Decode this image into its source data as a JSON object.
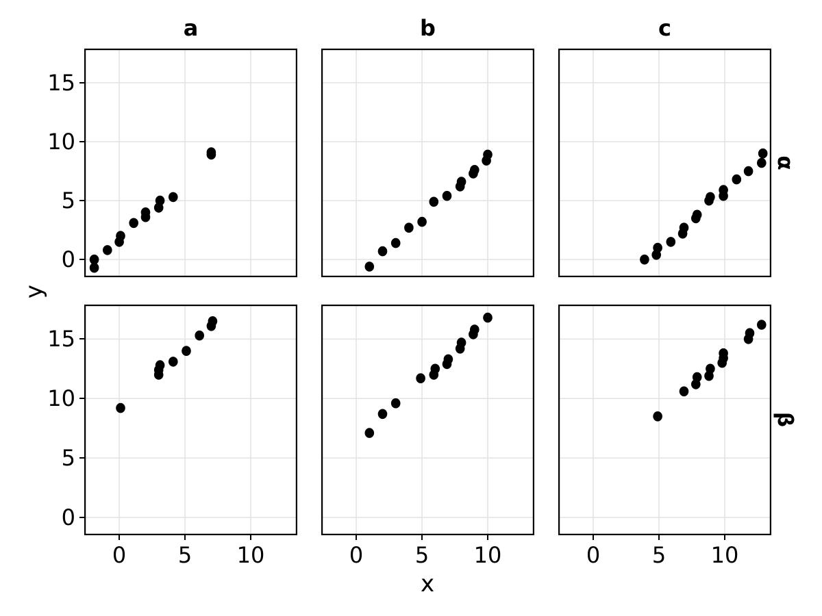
{
  "chart_data": {
    "type": "scatter",
    "facet_layout": "grid",
    "col_facets": [
      "a",
      "b",
      "c"
    ],
    "row_facets": [
      "α",
      "β"
    ],
    "xlabel": "x",
    "ylabel": "y",
    "x_ticks": [
      0,
      5,
      10
    ],
    "y_ticks": [
      0,
      5,
      10,
      15
    ],
    "xlim": [
      -2.66,
      13.54
    ],
    "ylim": [
      -1.5,
      17.9
    ],
    "grid": "major-only",
    "legend": "none",
    "point_color": "#000000",
    "grid_color": "#e2e2e2",
    "border_color": "#000000",
    "background_color": "#ffffff",
    "panels": [
      {
        "row": "α",
        "col": "a",
        "points": [
          [
            -1.9,
            0.0
          ],
          [
            -1.9,
            -0.7
          ],
          [
            -0.9,
            0.8
          ],
          [
            0.0,
            1.5
          ],
          [
            0.1,
            2.0
          ],
          [
            1.1,
            3.1
          ],
          [
            2.0,
            3.6
          ],
          [
            2.0,
            4.0
          ],
          [
            3.0,
            4.4
          ],
          [
            3.1,
            5.0
          ],
          [
            4.1,
            5.3
          ],
          [
            7.0,
            8.9
          ],
          [
            7.0,
            9.1
          ]
        ]
      },
      {
        "row": "α",
        "col": "b",
        "points": [
          [
            1.0,
            -0.6
          ],
          [
            2.0,
            0.7
          ],
          [
            3.0,
            1.4
          ],
          [
            4.0,
            2.7
          ],
          [
            5.0,
            3.2
          ],
          [
            5.9,
            4.9
          ],
          [
            6.9,
            5.4
          ],
          [
            7.9,
            6.2
          ],
          [
            8.0,
            6.6
          ],
          [
            8.9,
            7.3
          ],
          [
            9.0,
            7.6
          ],
          [
            9.9,
            8.4
          ],
          [
            10.0,
            8.9
          ]
        ]
      },
      {
        "row": "α",
        "col": "c",
        "points": [
          [
            3.9,
            0.0
          ],
          [
            4.8,
            0.4
          ],
          [
            4.9,
            1.0
          ],
          [
            5.9,
            1.5
          ],
          [
            6.8,
            2.2
          ],
          [
            6.9,
            2.7
          ],
          [
            7.8,
            3.5
          ],
          [
            7.9,
            3.8
          ],
          [
            8.8,
            5.0
          ],
          [
            8.9,
            5.3
          ],
          [
            9.9,
            5.4
          ],
          [
            9.9,
            5.9
          ],
          [
            10.9,
            6.8
          ],
          [
            11.8,
            7.5
          ],
          [
            12.8,
            8.2
          ],
          [
            12.9,
            9.0
          ]
        ]
      },
      {
        "row": "β",
        "col": "a",
        "points": [
          [
            0.1,
            9.2
          ],
          [
            3.0,
            12.0
          ],
          [
            3.0,
            12.4
          ],
          [
            3.1,
            12.8
          ],
          [
            4.1,
            13.1
          ],
          [
            5.1,
            14.0
          ],
          [
            6.1,
            15.3
          ],
          [
            7.0,
            16.1
          ],
          [
            7.1,
            16.5
          ]
        ]
      },
      {
        "row": "β",
        "col": "b",
        "points": [
          [
            1.0,
            7.1
          ],
          [
            2.0,
            8.7
          ],
          [
            3.0,
            9.6
          ],
          [
            4.9,
            11.7
          ],
          [
            5.9,
            12.0
          ],
          [
            6.0,
            12.5
          ],
          [
            6.9,
            12.9
          ],
          [
            7.0,
            13.3
          ],
          [
            7.9,
            14.2
          ],
          [
            8.0,
            14.7
          ],
          [
            8.9,
            15.4
          ],
          [
            9.0,
            15.8
          ],
          [
            10.0,
            16.8
          ]
        ]
      },
      {
        "row": "β",
        "col": "c",
        "points": [
          [
            4.9,
            8.5
          ],
          [
            6.9,
            10.6
          ],
          [
            7.8,
            11.2
          ],
          [
            7.9,
            11.8
          ],
          [
            8.8,
            11.9
          ],
          [
            8.9,
            12.5
          ],
          [
            9.8,
            13.0
          ],
          [
            9.9,
            13.4
          ],
          [
            9.9,
            13.8
          ],
          [
            11.8,
            15.0
          ],
          [
            11.9,
            15.5
          ],
          [
            12.8,
            16.2
          ]
        ]
      }
    ]
  }
}
